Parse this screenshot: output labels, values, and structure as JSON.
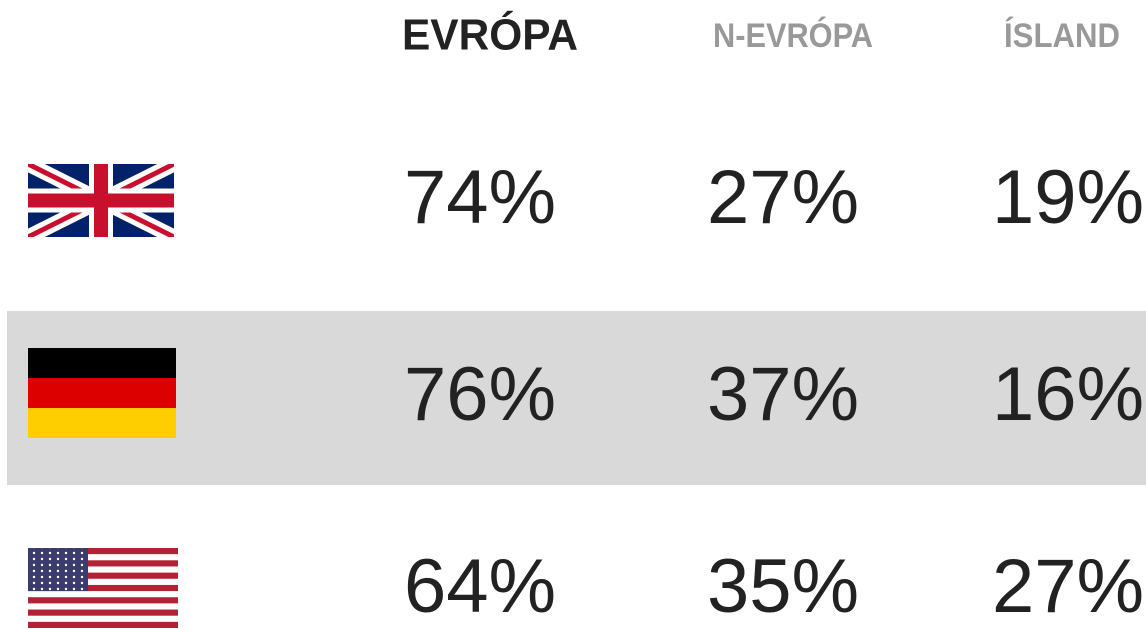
{
  "table": {
    "header": [
      "EVRÓPA",
      "N-EVRÓPA",
      "ÍSLAND"
    ],
    "rows": [
      [
        "74%",
        "27%",
        "19%"
      ],
      [
        "76%",
        "37%",
        "16%"
      ],
      [
        "64%",
        "35%",
        "27%"
      ]
    ]
  }
}
